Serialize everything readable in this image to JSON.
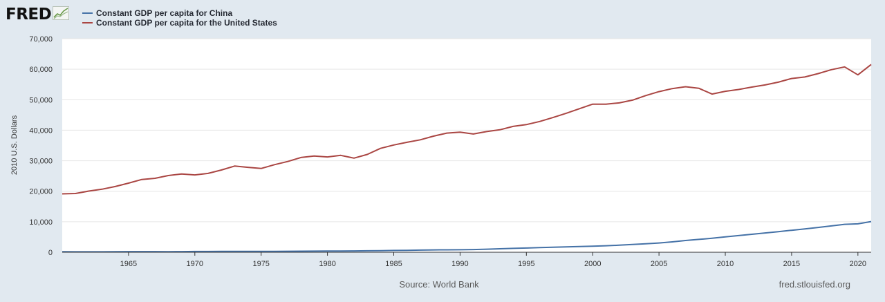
{
  "header": {
    "logo_text": "FRED",
    "logo_icon": "fred-chart-icon"
  },
  "footer": {
    "source": "Source: World Bank",
    "link": "fred.stlouisfed.org"
  },
  "colors": {
    "background": "#e1e9f0",
    "plot_background": "#ffffff",
    "gridline": "#e6e6e6",
    "china": "#4572a7",
    "united_states": "#aa4643"
  },
  "chart_data": {
    "type": "line",
    "title": "",
    "xlabel": "",
    "ylabel": "2010 U.S. Dollars",
    "xlim": [
      1960,
      2021
    ],
    "ylim": [
      0,
      70000
    ],
    "xticks": [
      1965,
      1970,
      1975,
      1980,
      1985,
      1990,
      1995,
      2000,
      2005,
      2010,
      2015,
      2020
    ],
    "yticks": [
      0,
      10000,
      20000,
      30000,
      40000,
      50000,
      60000,
      70000
    ],
    "ytick_labels": [
      "0",
      "10,000",
      "20,000",
      "30,000",
      "40,000",
      "50,000",
      "60,000",
      "70,000"
    ],
    "grid": true,
    "legend_position": "top-left",
    "x": [
      1960,
      1961,
      1962,
      1963,
      1964,
      1965,
      1966,
      1967,
      1968,
      1969,
      1970,
      1971,
      1972,
      1973,
      1974,
      1975,
      1976,
      1977,
      1978,
      1979,
      1980,
      1981,
      1982,
      1983,
      1984,
      1985,
      1986,
      1987,
      1988,
      1989,
      1990,
      1991,
      1992,
      1993,
      1994,
      1995,
      1996,
      1997,
      1998,
      1999,
      2000,
      2001,
      2002,
      2003,
      2004,
      2005,
      2006,
      2007,
      2008,
      2009,
      2010,
      2011,
      2012,
      2013,
      2014,
      2015,
      2016,
      2017,
      2018,
      2019,
      2020,
      2021
    ],
    "series": [
      {
        "name": "Constant GDP per capita for China",
        "color": "#4572a7",
        "values": [
          190,
          140,
          130,
          145,
          170,
          195,
          210,
          195,
          185,
          210,
          250,
          260,
          265,
          280,
          285,
          305,
          295,
          315,
          345,
          370,
          390,
          405,
          430,
          465,
          530,
          595,
          640,
          705,
          775,
          800,
          820,
          885,
          1000,
          1130,
          1260,
          1390,
          1510,
          1630,
          1740,
          1850,
          1990,
          2140,
          2320,
          2530,
          2760,
          3040,
          3400,
          3860,
          4210,
          4580,
          5030,
          5470,
          5880,
          6310,
          6750,
          7200,
          7650,
          8140,
          8640,
          9150,
          9320,
          10050
        ]
      },
      {
        "name": "Constant GDP per capita for the United States",
        "color": "#aa4643",
        "values": [
          19150,
          19250,
          20050,
          20650,
          21550,
          22650,
          23850,
          24250,
          25150,
          25650,
          25350,
          25850,
          26950,
          28250,
          27850,
          27450,
          28700,
          29750,
          31050,
          31550,
          31250,
          31750,
          30850,
          32050,
          34050,
          35150,
          36050,
          36850,
          38050,
          39050,
          39350,
          38750,
          39550,
          40150,
          41250,
          41850,
          42850,
          44150,
          45550,
          47050,
          48550,
          48550,
          48950,
          49850,
          51350,
          52650,
          53650,
          54250,
          53750,
          51850,
          52750,
          53350,
          54150,
          54850,
          55750,
          56950,
          57450,
          58550,
          59850,
          60750,
          58150,
          61550
        ]
      }
    ]
  }
}
